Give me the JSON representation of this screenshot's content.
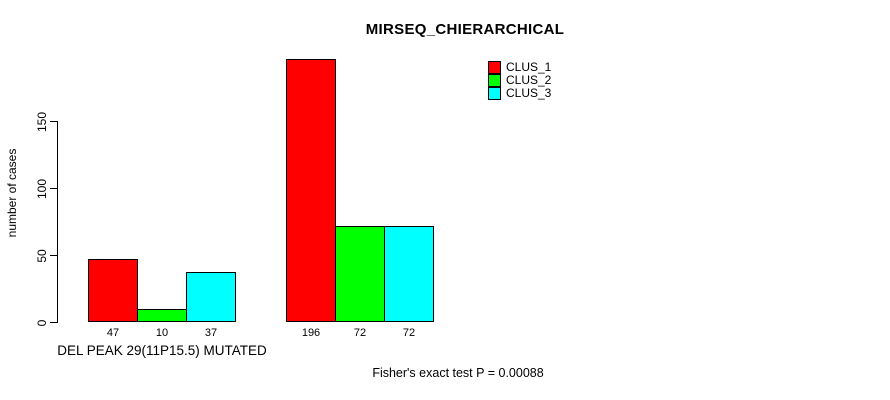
{
  "chart_data": {
    "type": "bar",
    "title": "MIRSEQ_CHIERARCHICAL",
    "ylabel": "number of cases",
    "xlabel": "",
    "ylim": [
      0,
      150
    ],
    "yticks": [
      0,
      50,
      100,
      150
    ],
    "grid": false,
    "bar_value_labels": true,
    "legend_position": "top-right",
    "groups": [
      "DEL PEAK 29(11P15.5) MUTATED",
      ""
    ],
    "series": [
      {
        "name": "CLUS_1",
        "color": "#ff0000",
        "values": [
          47,
          196
        ]
      },
      {
        "name": "CLUS_2",
        "color": "#00ff00",
        "values": [
          10,
          72
        ]
      },
      {
        "name": "CLUS_3",
        "color": "#00ffff",
        "values": [
          37,
          72
        ]
      }
    ],
    "footer": "Fisher's exact test P = 0.00088"
  },
  "colors": {
    "background": "#ffffff",
    "axis": "#000000",
    "text": "#000000"
  }
}
